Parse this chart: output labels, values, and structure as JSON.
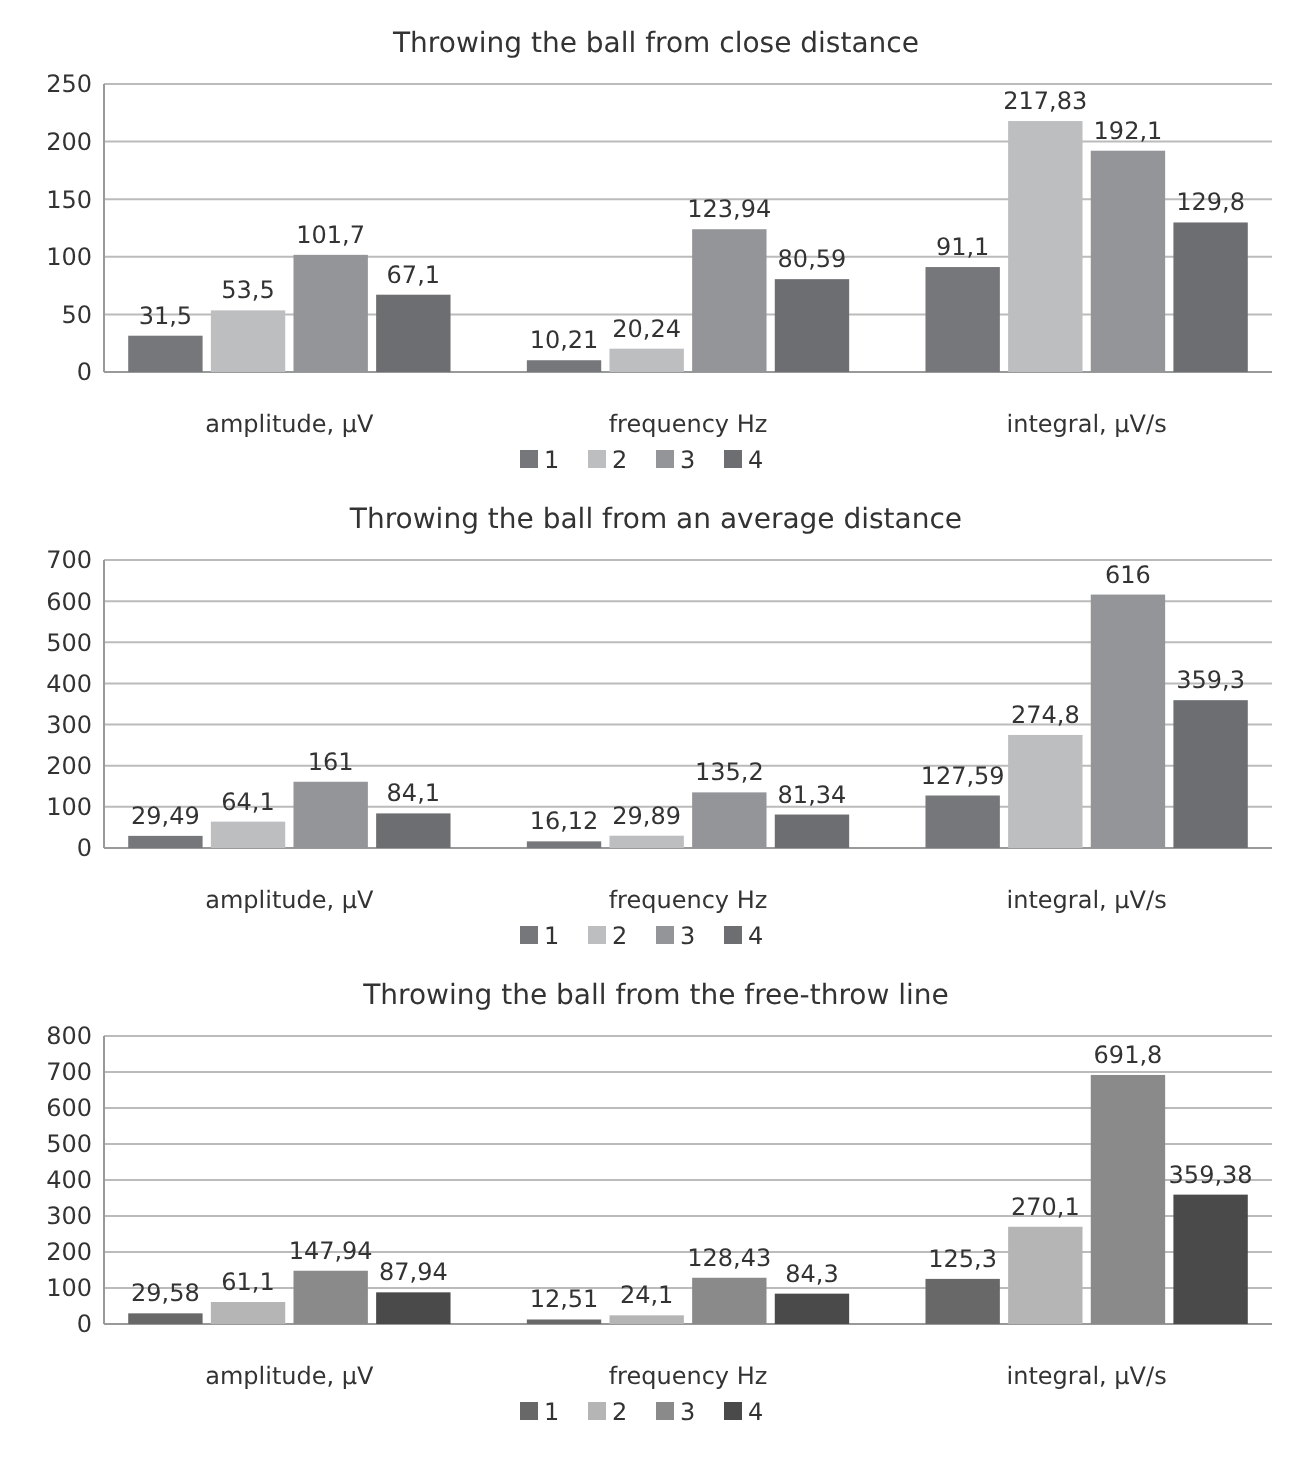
{
  "chart_data": [
    {
      "type": "bar",
      "title": "Throwing the ball from close distance",
      "categories": [
        "amplitude, µV",
        "frequency Hz",
        "integral, µV/s"
      ],
      "ylim": [
        0,
        250
      ],
      "yticks": [
        0,
        50,
        100,
        150,
        200,
        250
      ],
      "grid": "y",
      "legend": "bottom",
      "series": [
        {
          "name": "1",
          "color": "#76777a",
          "values": [
            31.5,
            10.21,
            91.1
          ],
          "value_labels": [
            "31,5",
            "10,21",
            "91,1"
          ]
        },
        {
          "name": "2",
          "color": "#bdbec0",
          "values": [
            53.5,
            20.24,
            217.83
          ],
          "value_labels": [
            "53,5",
            "20,24",
            "217,83"
          ]
        },
        {
          "name": "3",
          "color": "#939598",
          "values": [
            101.7,
            123.94,
            192.1
          ],
          "value_labels": [
            "101,7",
            "123,94",
            "192,1"
          ]
        },
        {
          "name": "4",
          "color": "#6d6e71",
          "values": [
            67.1,
            80.59,
            129.8
          ],
          "value_labels": [
            "67,1",
            "80,59",
            "129,8"
          ]
        }
      ]
    },
    {
      "type": "bar",
      "title": "Throwing the ball from an average distance",
      "categories": [
        "amplitude, µV",
        "frequency Hz",
        "integral, µV/s"
      ],
      "ylim": [
        0,
        700
      ],
      "yticks": [
        0,
        100,
        200,
        300,
        400,
        500,
        600,
        700
      ],
      "grid": "y",
      "legend": "bottom",
      "series": [
        {
          "name": "1",
          "color": "#76777a",
          "values": [
            29.49,
            16.12,
            127.59
          ],
          "value_labels": [
            "29,49",
            "16,12",
            "127,59"
          ]
        },
        {
          "name": "2",
          "color": "#bdbec0",
          "values": [
            64.1,
            29.89,
            274.8
          ],
          "value_labels": [
            "64,1",
            "29,89",
            "274,8"
          ]
        },
        {
          "name": "3",
          "color": "#939598",
          "values": [
            161,
            135.2,
            616
          ],
          "value_labels": [
            "161",
            "135,2",
            "616"
          ]
        },
        {
          "name": "4",
          "color": "#6d6e71",
          "values": [
            84.1,
            81.34,
            359.3
          ],
          "value_labels": [
            "84,1",
            "81,34",
            "359,3"
          ]
        }
      ]
    },
    {
      "type": "bar",
      "title": "Throwing the ball from the free-throw line",
      "categories": [
        "amplitude, µV",
        "frequency Hz",
        "integral, µV/s"
      ],
      "ylim": [
        0,
        800
      ],
      "yticks": [
        0,
        100,
        200,
        300,
        400,
        500,
        600,
        700,
        800
      ],
      "grid": "y",
      "legend": "bottom",
      "series": [
        {
          "name": "1",
          "color": "#686868",
          "values": [
            29.58,
            12.51,
            125.3
          ],
          "value_labels": [
            "29,58",
            "12,51",
            "125,3"
          ]
        },
        {
          "name": "2",
          "color": "#b5b5b5",
          "values": [
            61.1,
            24.1,
            270.1
          ],
          "value_labels": [
            "61,1",
            "24,1",
            "270,1"
          ]
        },
        {
          "name": "3",
          "color": "#8a8a8a",
          "values": [
            147.94,
            128.43,
            691.8
          ],
          "value_labels": [
            "147,94",
            "128,43",
            "691,8"
          ]
        },
        {
          "name": "4",
          "color": "#4a4a4a",
          "values": [
            87.94,
            84.3,
            359.38
          ],
          "value_labels": [
            "87,94",
            "84,3",
            "359,38"
          ]
        }
      ]
    }
  ]
}
